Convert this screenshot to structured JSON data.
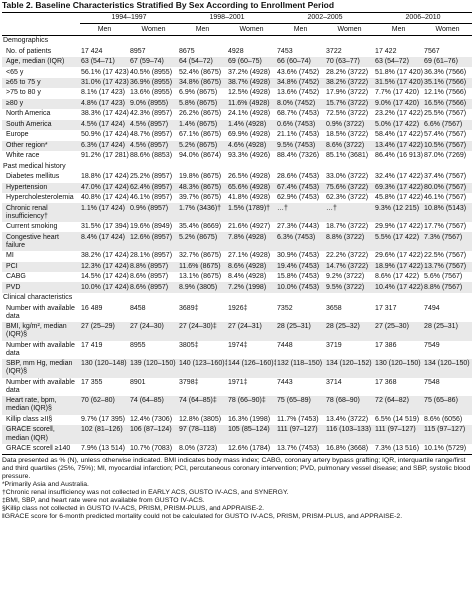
{
  "title": "Table 2.   Baseline Characteristics Stratified By Sex According to Enrollment Period",
  "periods": [
    "1994–1997",
    "1998–2001",
    "2002–2005",
    "2006–2010"
  ],
  "sexes": [
    "Men",
    "Women",
    "Men",
    "Women",
    "Men",
    "Women",
    "Men",
    "Women"
  ],
  "rows": [
    {
      "section": "Demographics"
    },
    {
      "label": "No. of patients",
      "cells": [
        "17 424",
        "8957",
        "8675",
        "4928",
        "7453",
        "3722",
        "17 422",
        "7567"
      ]
    },
    {
      "label": "Age, median (IQR)",
      "cells": [
        "63 (54–71)",
        "67 (59–74)",
        "64 (54–72)",
        "69 (60–75)",
        "66 (60–74)",
        "70 (63–77)",
        "63 (54–72)",
        "69 (61–76)"
      ]
    },
    {
      "label": "<65 y",
      "cells": [
        "56.1% (17 423)",
        "40.5% (8955)",
        "52.4% (8675)",
        "37.2% (4928)",
        "43.6% (7452)",
        "28.2% (3722)",
        "51.8% (17 420)",
        "36.3% (7566)"
      ]
    },
    {
      "label": "≥65 to 75 y",
      "cells": [
        "31.0% (17 423)",
        "36.9% (8955)",
        "34.8% (8675)",
        "38.7% (4928)",
        "34.8% (7452)",
        "38.2% (3722)",
        "31.5% (17 420)",
        "35.1% (7566)"
      ]
    },
    {
      "label": ">75 to 80 y",
      "cells": [
        "8.1% (17 423)",
        "13.6% (8955)",
        "6.9% (8675)",
        "12.5% (4928)",
        "13.6% (7452)",
        "17.9% (3722)",
        "7.7% (17 420)",
        "12.1% (7566)"
      ]
    },
    {
      "label": "≥80 y",
      "cells": [
        "4.8% (17 423)",
        "9.0% (8955)",
        "5.8% (8675)",
        "11.6% (4928)",
        "8.0% (7452)",
        "15.7% (3722)",
        "9.0% (17 420)",
        "16.5% (7566)"
      ]
    },
    {
      "label": "North America",
      "cells": [
        "38.3% (17 424)",
        "42.3% (8957)",
        "26.2% (8675)",
        "24.1% (4928)",
        "68.7% (7453)",
        "72.5% (3722)",
        "23.2% (17 422)",
        "25.5% (7567)"
      ]
    },
    {
      "label": "South America",
      "cells": [
        "4.5% (17 424)",
        "4.5% (8957)",
        "1.4% (8675)",
        "1.4% (4928)",
        "0.6% (7453)",
        "0.9% (3722)",
        "5.0% (17 422)",
        "6.6% (7567)"
      ]
    },
    {
      "label": "Europe",
      "cells": [
        "50.9% (17 424)",
        "48.7% (8957)",
        "67.1% (8675)",
        "69.9% (4928)",
        "21.1% (7453)",
        "18.5% (3722)",
        "58.4% (17 422)",
        "57.4% (7567)"
      ]
    },
    {
      "label": "Other region*",
      "cells": [
        "6.3% (17 424)",
        "4.5% (8957)",
        "5.2% (8675)",
        "4.6% (4928)",
        "9.5% (7453)",
        "8.6% (3722)",
        "13.4% (17 422)",
        "10.5% (7567)"
      ]
    },
    {
      "label": "White race",
      "cells": [
        "91.2% (17 281)",
        "88.6% (8853)",
        "94.0% (8674)",
        "93.3% (4926)",
        "88.4% (7326)",
        "85.1% (3681)",
        "86.4% (16 913)",
        "87.0% (7269)"
      ]
    },
    {
      "section": "Past medical history"
    },
    {
      "label": "Diabetes mellitus",
      "cells": [
        "18.8% (17 424)",
        "25.2% (8957)",
        "19.8% (8675)",
        "26.5% (4928)",
        "28.6% (7453)",
        "33.0% (3722)",
        "32.4% (17 422)",
        "37.4% (7567)"
      ]
    },
    {
      "label": "Hypertension",
      "cells": [
        "47.0% (17 424)",
        "62.4% (8957)",
        "48.3% (8675)",
        "65.6% (4928)",
        "67.4% (7453)",
        "75.6% (3722)",
        "69.3% (17 422)",
        "80.0% (7567)"
      ]
    },
    {
      "label": "Hypercholesterolemia",
      "cells": [
        "40.8% (17 424)",
        "46.1% (8957)",
        "39.7% (8675)",
        "41.8% (4928)",
        "62.9% (7453)",
        "62.3% (3722)",
        "45.8% (17 422)",
        "46.1% (7567)"
      ]
    },
    {
      "label": "Chronic renal insufficiency†",
      "cells": [
        "1.1% (17 424)",
        "0.9% (8957)",
        "1.7% (3436)†",
        "1.5% (1789)†",
        "…†",
        "…†",
        "9.3% (12 215)",
        "10.8% (5143)"
      ]
    },
    {
      "label": "Current smoking",
      "cells": [
        "31.5% (17 394)",
        "19.6% (8949)",
        "35.4% (8669)",
        "21.6% (4927)",
        "27.3% (7443)",
        "18.7% (3722)",
        "29.9% (17 422)",
        "17.7% (7567)"
      ]
    },
    {
      "label": "Congestive heart failure",
      "cells": [
        "8.4% (17 424)",
        "12.6% (8957)",
        "5.2% (8675)",
        "7.8% (4928)",
        "6.3% (7453)",
        "8.8% (3722)",
        "5.5% (17 422)",
        "7.3% (7567)"
      ]
    },
    {
      "label": "MI",
      "cells": [
        "38.2% (17 424)",
        "28.1% (8957)",
        "32.7% (8675)",
        "27.1% (4928)",
        "30.9% (7453)",
        "22.2% (3722)",
        "29.6% (17 422)",
        "22.5% (7567)"
      ]
    },
    {
      "label": "PCI",
      "cells": [
        "12.3% (17 424)",
        "8.8% (8957)",
        "11.6% (8675)",
        "8.6% (4928)",
        "19.4% (7453)",
        "14.7% (3722)",
        "18.9% (17 422)",
        "13.7% (7567)"
      ]
    },
    {
      "label": "CABG",
      "cells": [
        "14.5% (17 424)",
        "8.6% (8957)",
        "13.1% (8675)",
        "8.4% (4928)",
        "15.8% (7453)",
        "9.2% (3722)",
        "8.6% (17 422)",
        "5.6% (7567)"
      ]
    },
    {
      "label": "PVD",
      "cells": [
        "10.0% (17 424)",
        "8.6% (8957)",
        "8.9% (3805)",
        "7.2% (1998)",
        "10.0% (7453)",
        "9.5% (3722)",
        "10.4% (17 422)",
        "8.8% (7567)"
      ]
    },
    {
      "section": "Clinical characteristics"
    },
    {
      "label": "Number with available data",
      "cells": [
        "16 489",
        "8458",
        "3689‡",
        "1926‡",
        "7352",
        "3658",
        "17 317",
        "7494"
      ]
    },
    {
      "label": "BMI, kg/m², median (IQR)§",
      "cells": [
        "27 (25–29)",
        "27 (24–30)",
        "27 (24–30)‡",
        "27 (24–31)",
        "28 (25–31)",
        "28 (25–32)",
        "27 (25–30)",
        "28 (25–31)"
      ]
    },
    {
      "label": "Number with available data",
      "cells": [
        "17 419",
        "8955",
        "3805‡",
        "1974‡",
        "7448",
        "3719",
        "17 386",
        "7549"
      ]
    },
    {
      "label": "SBP, mm Hg, median (IQR)§",
      "cells": [
        "130 (120–148)",
        "139 (120–150)",
        "140 (123–160)‡",
        "144 (126–160)‡",
        "132 (118–150)",
        "134 (120–152)",
        "130 (120–150)",
        "134 (120–150)"
      ]
    },
    {
      "label": "Number with available data",
      "cells": [
        "17 355",
        "8901",
        "3798‡",
        "1971‡",
        "7443",
        "3714",
        "17 368",
        "7548"
      ]
    },
    {
      "label": "Heart rate, bpm, median (IQR)§",
      "cells": [
        "70 (62–80)",
        "74 (64–85)",
        "74 (64–85)‡",
        "78 (66–90)‡",
        "75 (65–89)",
        "78 (68–90)",
        "72 (64–82)",
        "75 (65–86)"
      ]
    },
    {
      "label": "Killip class ≥II§",
      "cells": [
        "9.7% (17 395)",
        "12.4% (7306)",
        "12.8% (3805)",
        "16.3% (1998)",
        "11.7% (7453)",
        "13.4% (3722)",
        "6.5% (14 519)",
        "8.6% (6056)"
      ]
    },
    {
      "label": "GRACE score‖, median (IQR)",
      "cells": [
        "102 (81–126)",
        "106 (87–124)",
        "97 (78–118)",
        "105 (85–124)",
        "111 (97–127)",
        "116 (103–133)",
        "111 (97–127)",
        "115 (97–127)"
      ]
    },
    {
      "label": "GRACE score‖ ≥140",
      "cells": [
        "7.9% (13 514)",
        "10.7% (7083)",
        "8.0% (3723)",
        "12.6% (1784)",
        "13.7% (7453)",
        "16.8% (3668)",
        "7.3% (13 516)",
        "10.1% (5729)"
      ]
    }
  ],
  "notes": [
    "Data presented as % (N), unless otherwise indicated. BMI indicates body mass index; CABG, coronary artery bypass grafting; IQR, interquartile range/first and third quartiles (25%, 75%); MI, myocardial infarction; PCI, percutaneous coronary intervention; PVD, pulmonary vessel disease; and SBP, systolic blood pressure.",
    "*Primarily Asia and Australia.",
    "†Chronic renal insufficiency was not collected in EARLY ACS, GUSTO IV-ACS, and SYNERGY.",
    "‡BMI, SBP, and heart rate were not available from GUSTO IV-ACS.",
    "§Killip class not collected in GUSTO IV-ACS, PRISM, PRISM-PLUS, and APPRAISE-2.",
    "‖GRACE score for 6-month predicted mortality could not be calculated for GUSTO IV-ACS, PRISM, PRISM-PLUS, and APPRAISE-2."
  ]
}
